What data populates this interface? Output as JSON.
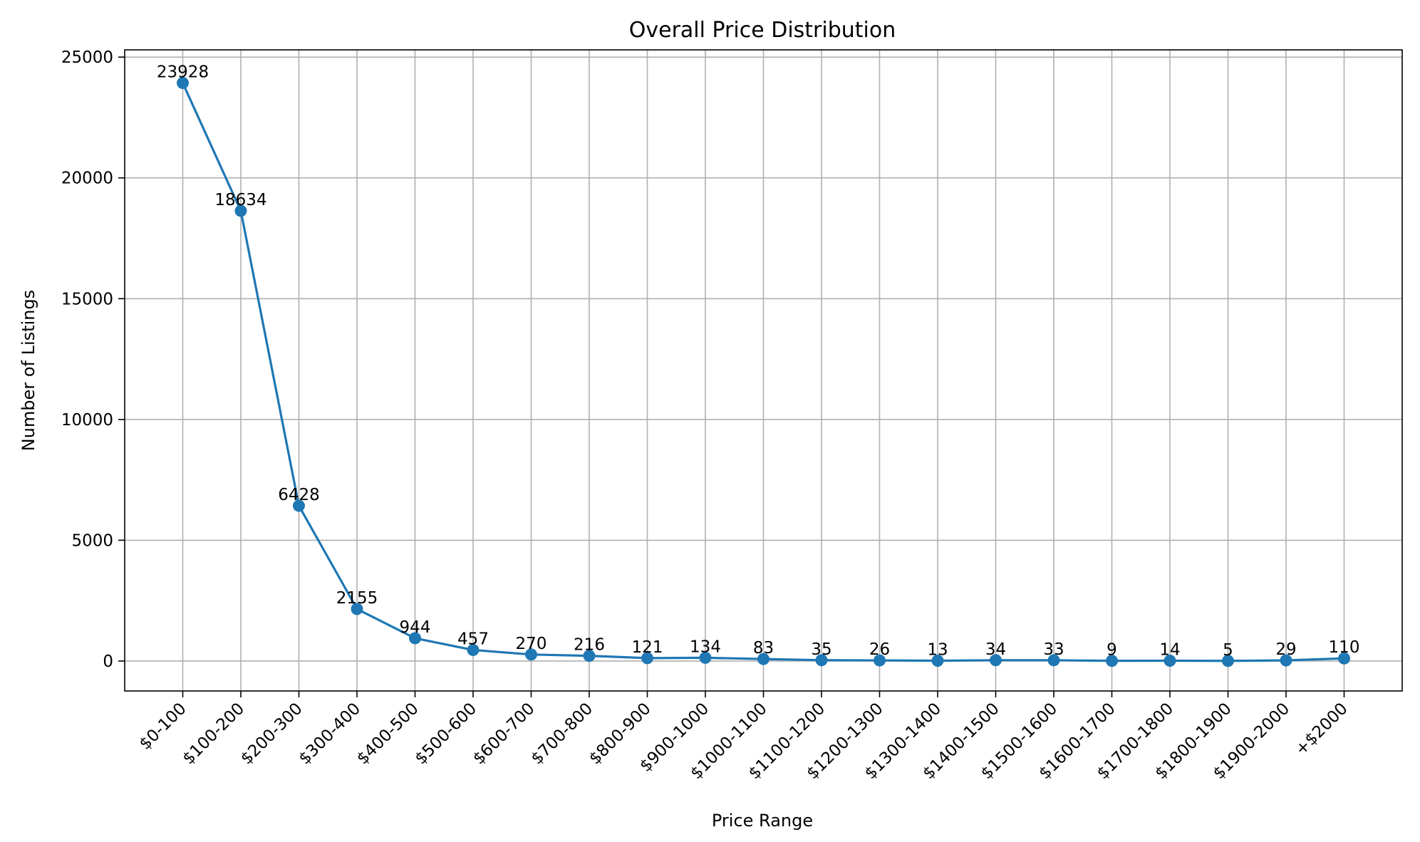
{
  "chart_data": {
    "type": "line",
    "title": "Overall Price Distribution",
    "xlabel": "Price Range",
    "ylabel": "Number of Listings",
    "categories": [
      "$0-100",
      "$100-200",
      "$200-300",
      "$300-400",
      "$400-500",
      "$500-600",
      "$600-700",
      "$700-800",
      "$800-900",
      "$900-1000",
      "$1000-1100",
      "$1100-1200",
      "$1200-1300",
      "$1300-1400",
      "$1400-1500",
      "$1500-1600",
      "$1600-1700",
      "$1700-1800",
      "$1800-1900",
      "$1900-2000",
      "+$2000"
    ],
    "series": [
      {
        "values": [
          23928,
          18634,
          6428,
          2155,
          944,
          457,
          270,
          216,
          121,
          134,
          83,
          35,
          26,
          13,
          34,
          33,
          9,
          14,
          5,
          29,
          110
        ],
        "color": "#1f77b4",
        "marker": "circle"
      }
    ],
    "data_labels": [
      "23928",
      "18634",
      "6428",
      "2155",
      "944",
      "457",
      "270",
      "216",
      "121",
      "134",
      "83",
      "35",
      "26",
      "13",
      "34",
      "33",
      "9",
      "14",
      "5",
      "29",
      "110"
    ],
    "yticks": [
      0,
      5000,
      10000,
      15000,
      20000,
      25000
    ],
    "ytick_labels": [
      "0",
      "5000",
      "10000",
      "15000",
      "20000",
      "25000"
    ],
    "ylim": [
      -1240,
      25300
    ],
    "grid": true,
    "x_tick_rotation": 45
  }
}
